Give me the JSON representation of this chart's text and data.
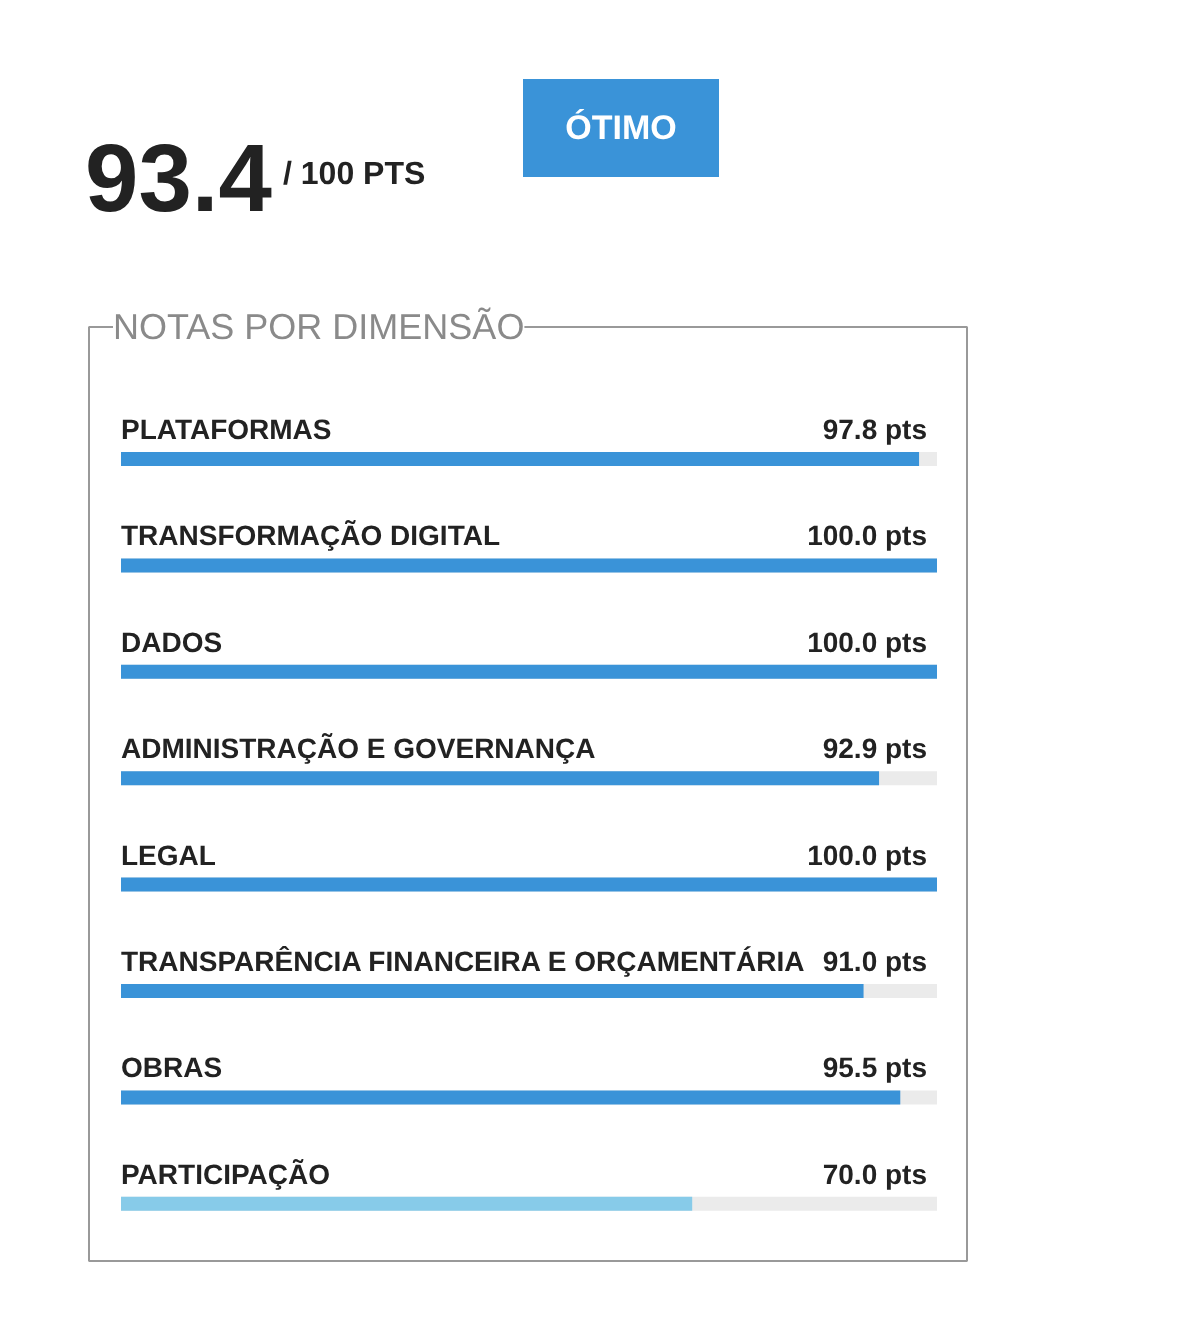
{
  "chart_data": {
    "type": "bar",
    "orientation": "horizontal",
    "title": "NOTAS POR DIMENSÃO",
    "annotations": [
      "93.4",
      "/ 100 PTS",
      "ÓTIMO"
    ],
    "categories": [
      "PLATAFORMAS",
      "TRANSFORMAÇÃO DIGITAL",
      "DADOS",
      "ADMINISTRAÇÃO E GOVERNANÇA",
      "LEGAL",
      "TRANSPARÊNCIA FINANCEIRA E ORÇAMENTÁRIA",
      "OBRAS",
      "PARTICIPAÇÃO"
    ],
    "values": [
      97.8,
      100.0,
      100.0,
      92.9,
      100.0,
      91.0,
      95.5,
      70.0
    ],
    "value_labels": [
      "97.8 pts",
      "100.0 pts",
      "100.0 pts",
      "92.9 pts",
      "100.0 pts",
      "91.0 pts",
      "95.5 pts",
      "70.0 pts"
    ],
    "colors": [
      "#3a93d8",
      "#3a93d8",
      "#3a93d8",
      "#3a93d8",
      "#3a93d8",
      "#3a93d8",
      "#3a93d8",
      "#87cbe9"
    ],
    "xlim": [
      0,
      100
    ]
  }
}
